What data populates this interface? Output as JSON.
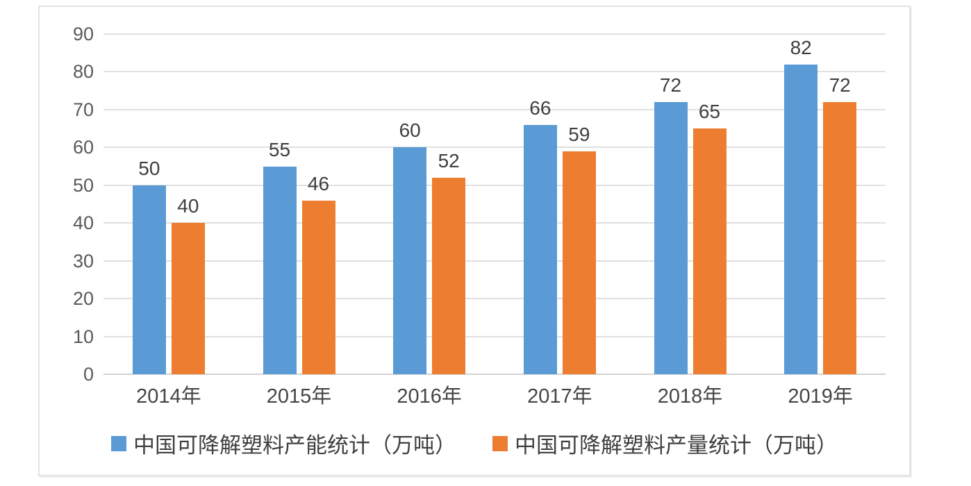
{
  "chart_data": {
    "type": "bar",
    "title": "",
    "xlabel": "",
    "ylabel": "",
    "categories": [
      "2014年",
      "2015年",
      "2016年",
      "2017年",
      "2018年",
      "2019年"
    ],
    "series": [
      {
        "name": "中国可降解塑料产能统计（万吨）",
        "color": "#5B9BD5",
        "values": [
          50,
          55,
          60,
          66,
          72,
          82
        ]
      },
      {
        "name": "中国可降解塑料产量统计（万吨）",
        "color": "#ED7D31",
        "values": [
          40,
          46,
          52,
          59,
          65,
          72
        ]
      }
    ],
    "ylim": [
      0,
      90
    ],
    "ytick_step": 10,
    "yticks": [
      0,
      10,
      20,
      30,
      40,
      50,
      60,
      70,
      80,
      90
    ],
    "grid": true,
    "legend_position": "bottom",
    "colors": {
      "gridline": "#e0e0e0",
      "axis_line": "#d2d2d2",
      "tick_text": "#595959",
      "label_text": "#3f3f3f",
      "panel_border": "#e2e2e2",
      "background": "#ffffff"
    }
  }
}
